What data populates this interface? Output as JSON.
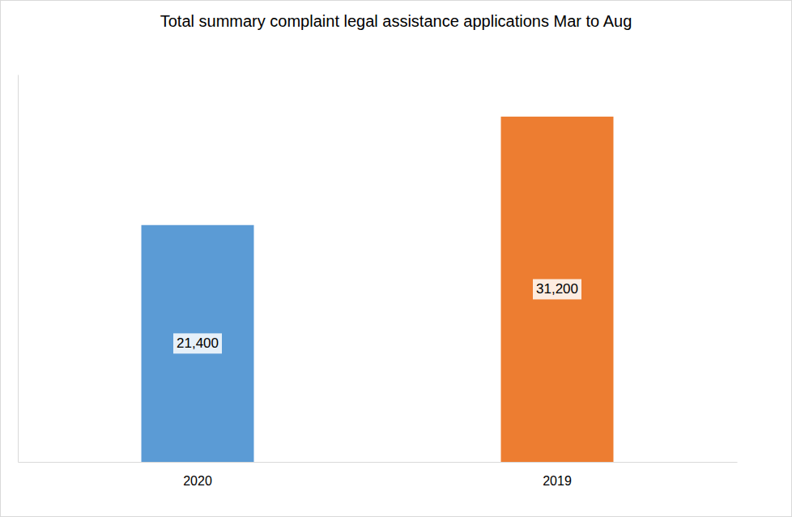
{
  "chart_data": {
    "type": "bar",
    "title": "Total summary complaint legal assistance applications Mar to Aug",
    "categories": [
      "2020",
      "2019"
    ],
    "values": [
      21400,
      31200
    ],
    "value_labels": [
      "21,400",
      "31,200"
    ],
    "colors": [
      "#5b9bd5",
      "#ed7d31"
    ],
    "ylim": [
      0,
      35000
    ],
    "data_labels": true,
    "grid": false,
    "tick_labels": "x"
  }
}
